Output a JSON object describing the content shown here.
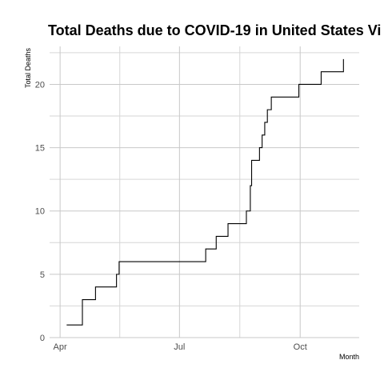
{
  "chart_data": {
    "type": "line",
    "title": "Total Deaths due to COVID-19 in United States Vi",
    "xlabel": "Month",
    "ylabel": "Total Deaths",
    "xlim": [
      "2020-03-24",
      "2020-11-15"
    ],
    "ylim": [
      0,
      23
    ],
    "x_ticks": [
      {
        "date": "2020-04-01",
        "label": "Apr"
      },
      {
        "date": "2020-07-01",
        "label": "Jul"
      },
      {
        "date": "2020-10-01",
        "label": "Oct"
      }
    ],
    "y_ticks": [
      0,
      5,
      10,
      15,
      20
    ],
    "grid": true,
    "line_color": "#000000",
    "series": [
      {
        "step": true,
        "points": [
          {
            "x": "2020-04-06",
            "y": 1
          },
          {
            "x": "2020-04-18",
            "y": 3
          },
          {
            "x": "2020-04-28",
            "y": 4
          },
          {
            "x": "2020-05-14",
            "y": 5
          },
          {
            "x": "2020-05-16",
            "y": 6
          },
          {
            "x": "2020-07-21",
            "y": 7
          },
          {
            "x": "2020-07-29",
            "y": 8
          },
          {
            "x": "2020-08-07",
            "y": 9
          },
          {
            "x": "2020-08-21",
            "y": 10
          },
          {
            "x": "2020-08-24",
            "y": 12
          },
          {
            "x": "2020-08-25",
            "y": 14
          },
          {
            "x": "2020-08-31",
            "y": 15
          },
          {
            "x": "2020-09-02",
            "y": 16
          },
          {
            "x": "2020-09-04",
            "y": 17
          },
          {
            "x": "2020-09-06",
            "y": 18
          },
          {
            "x": "2020-09-09",
            "y": 19
          },
          {
            "x": "2020-09-30",
            "y": 20
          },
          {
            "x": "2020-10-17",
            "y": 21
          },
          {
            "x": "2020-11-03",
            "y": 22
          }
        ],
        "end": "2020-11-03"
      }
    ]
  }
}
